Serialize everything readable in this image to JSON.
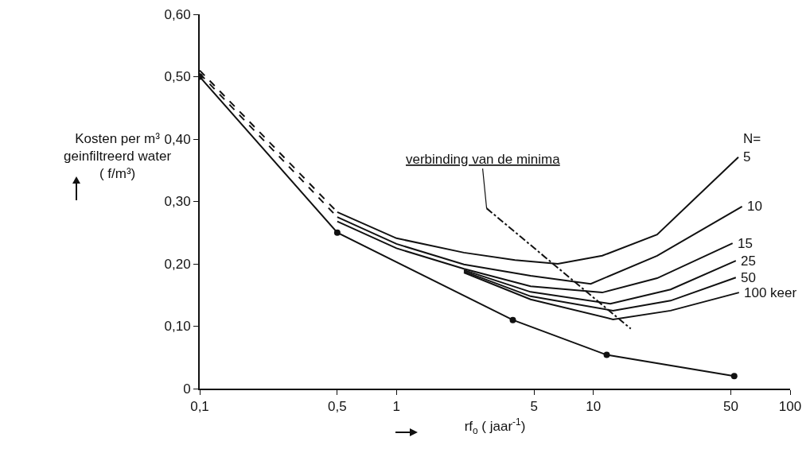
{
  "chart_data": {
    "type": "line",
    "xlabel": "rf$_{o}$ ( jaar$^{-1}$)",
    "ylabel": "Kosten per m³\ngeinfiltreerd water\n( f/m³)",
    "log": "x",
    "xlim": [
      0.1,
      100
    ],
    "xticks": [
      {
        "value": 0.1,
        "label": "0,1"
      },
      {
        "value": 0.5,
        "label": "0,5"
      },
      1,
      5,
      10,
      50,
      100
    ],
    "ylim": [
      0,
      0.6
    ],
    "yticks": [
      0,
      {
        "value": 0.1,
        "label": "0,10"
      },
      {
        "value": 0.2,
        "label": "0,20"
      },
      {
        "value": 0.3,
        "label": "0,30"
      },
      {
        "value": 0.4,
        "label": "0,40"
      },
      {
        "value": 0.5,
        "label": "0,50"
      },
      {
        "value": 0.6,
        "label": "0,60"
      }
    ],
    "grid": false,
    "legend": false,
    "line_style": "solid",
    "marker": "none",
    "legend_title": "N=",
    "annotations": [
      {
        "text": "verbinding van de minima",
        "x": 2.87,
        "y": 0.289
      }
    ],
    "series": [
      {
        "color": "#111111",
        "marker": "circle",
        "x": [
          0.1,
          0.5,
          3.9,
          11.7,
          52
        ],
        "values": [
          0.5,
          0.25,
          0.11,
          0.054,
          0.02
        ]
      },
      {
        "color": "#111111",
        "line_style": "dashed",
        "x": [
          0.1,
          0.5
        ],
        "values": [
          0.51,
          0.283
        ]
      },
      {
        "color": "#111111",
        "line_style": "dashed",
        "x": [
          0.1,
          0.5
        ],
        "values": [
          0.505,
          0.275
        ]
      },
      {
        "name": "5",
        "color": "#111111",
        "x": [
          0.5,
          1,
          2.2,
          4,
          6.6,
          11.1,
          21.1,
          54.6
        ],
        "values": [
          0.283,
          0.241,
          0.218,
          0.206,
          0.2,
          0.213,
          0.247,
          0.371
        ]
      },
      {
        "name": "10",
        "color": "#111111",
        "x": [
          0.5,
          1,
          2.2,
          4.8,
          9.7,
          21.1,
          57
        ],
        "values": [
          0.275,
          0.232,
          0.199,
          0.181,
          0.168,
          0.213,
          0.292
        ]
      },
      {
        "name": "15",
        "color": "#111111",
        "x": [
          0.5,
          1,
          2.2,
          4.8,
          11.1,
          21.1,
          51
        ],
        "values": [
          0.268,
          0.225,
          0.192,
          0.164,
          0.154,
          0.177,
          0.233
        ]
      },
      {
        "name": "25",
        "color": "#111111",
        "x": [
          2.2,
          4.8,
          12.2,
          24.7,
          53
        ],
        "values": [
          0.19,
          0.155,
          0.136,
          0.159,
          0.205
        ]
      },
      {
        "name": "50",
        "color": "#111111",
        "x": [
          2.2,
          4.8,
          12.6,
          24.7,
          53
        ],
        "values": [
          0.188,
          0.148,
          0.125,
          0.141,
          0.178
        ]
      },
      {
        "name": "100 keer",
        "color": "#111111",
        "x": [
          2.2,
          4.8,
          12.6,
          24.7,
          55
        ],
        "values": [
          0.186,
          0.143,
          0.111,
          0.125,
          0.154
        ]
      },
      {
        "color": "#111111",
        "line_style": "dashdot",
        "x": [
          2.87,
          15.5
        ],
        "values": [
          0.289,
          0.096
        ]
      }
    ]
  }
}
